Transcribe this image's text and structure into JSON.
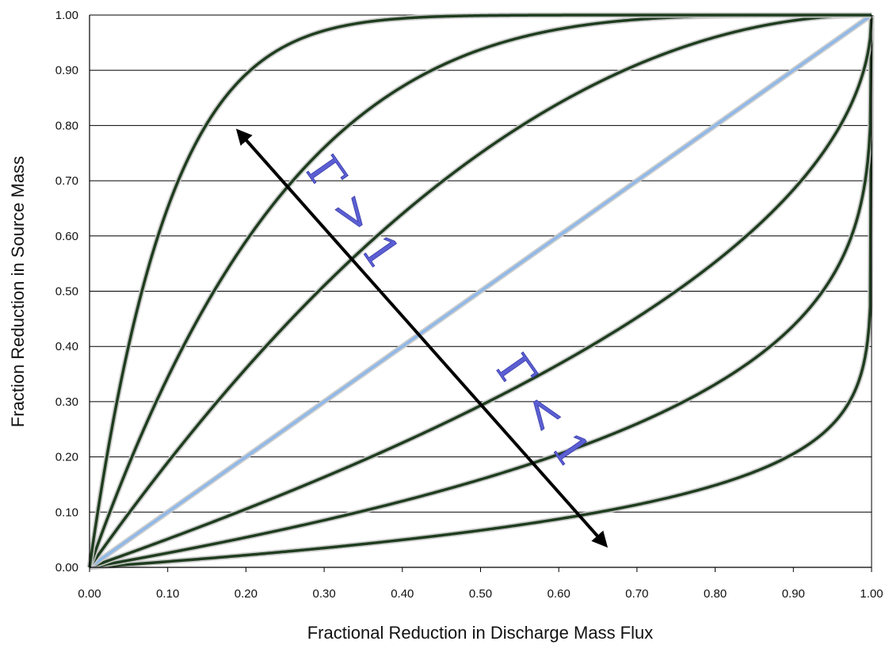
{
  "chart_data": {
    "type": "line",
    "xlabel": "Fractional Reduction in Discharge Mass Flux",
    "ylabel": "Fraction Reduction in Source Mass",
    "xlim": [
      0,
      1
    ],
    "ylim": [
      0,
      1
    ],
    "grid": "horizontal",
    "x_ticks": [
      "0.00",
      "0.10",
      "0.20",
      "0.30",
      "0.40",
      "0.50",
      "0.60",
      "0.70",
      "0.80",
      "0.90",
      "1.00"
    ],
    "y_ticks": [
      "0.00",
      "0.10",
      "0.20",
      "0.30",
      "0.40",
      "0.50",
      "0.60",
      "0.70",
      "0.80",
      "0.90",
      "1.00"
    ],
    "curve_family": "mass reduction = 1 - (1 - flux reduction)^(1/Gamma)",
    "series": [
      {
        "gamma": 10,
        "color": "#1f3d1f"
      },
      {
        "gamma": 4,
        "color": "#1f3d1f"
      },
      {
        "gamma": 2,
        "color": "#1f3d1f"
      },
      {
        "gamma": 1,
        "color": "#8fb8e8"
      },
      {
        "gamma": 0.5,
        "color": "#1f3d1f"
      },
      {
        "gamma": 0.25,
        "color": "#1f3d1f"
      },
      {
        "gamma": 0.1,
        "color": "#1f3d1f"
      }
    ],
    "annotations": [
      {
        "text": "Γ > 1",
        "color": "#5b5fd3"
      },
      {
        "text": "Γ < 1",
        "color": "#5b5fd3"
      }
    ],
    "arrow": {
      "from": [
        0.19,
        0.79
      ],
      "to": [
        0.66,
        0.04
      ],
      "style": "double-headed",
      "color": "#000000"
    }
  }
}
